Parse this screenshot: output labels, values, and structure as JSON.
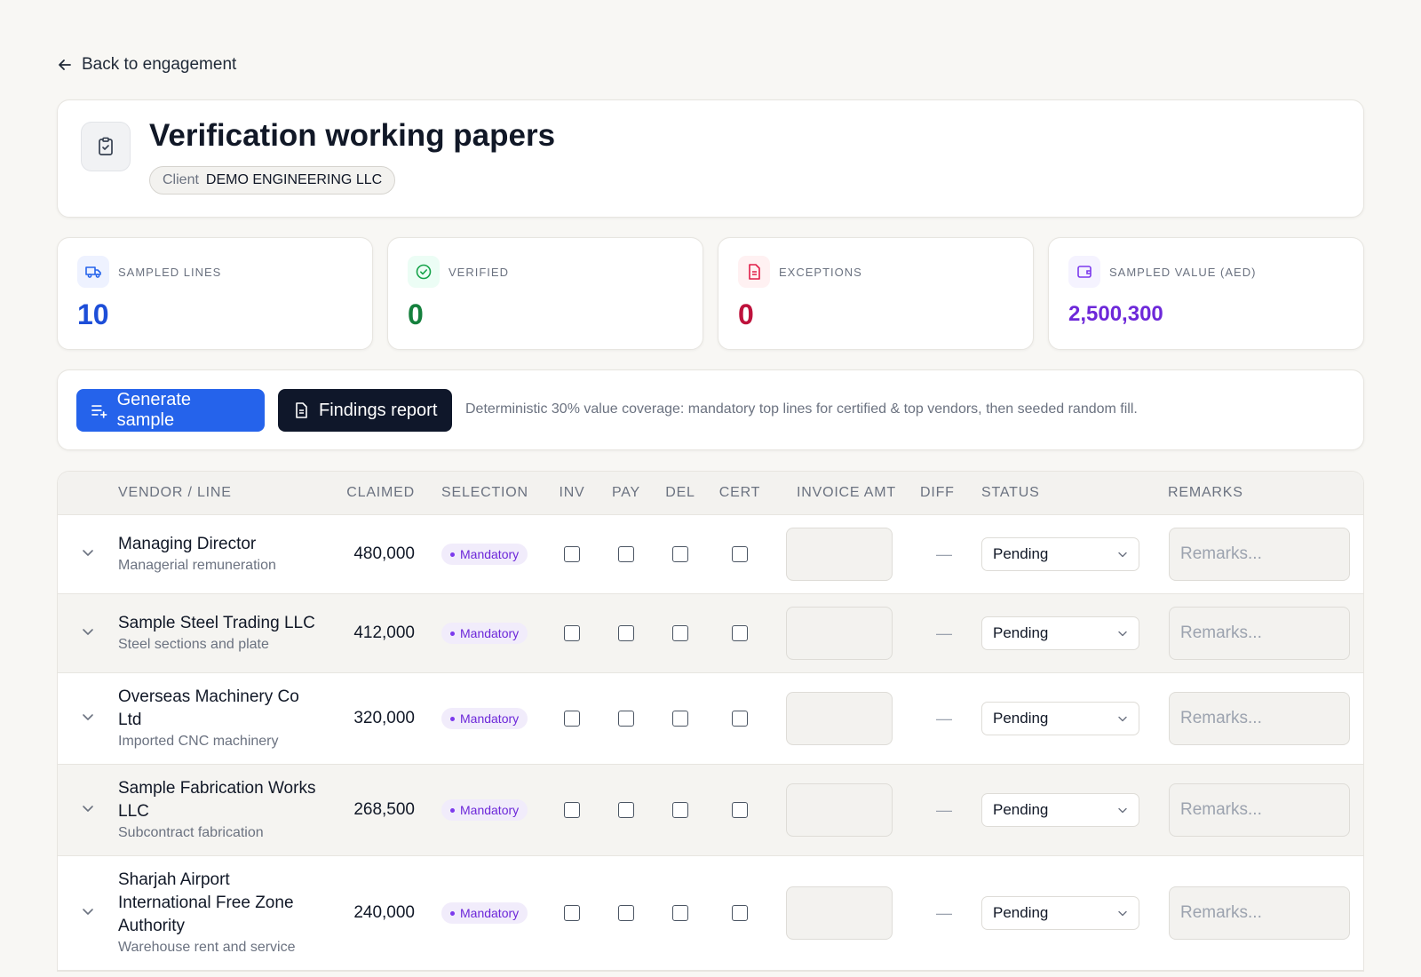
{
  "back_link": "Back to engagement",
  "header": {
    "title": "Verification working papers",
    "client_label": "Client",
    "client_name": "DEMO ENGINEERING LLC"
  },
  "stats": [
    {
      "label": "SAMPLED LINES",
      "value": "10"
    },
    {
      "label": "VERIFIED",
      "value": "0"
    },
    {
      "label": "EXCEPTIONS",
      "value": "0"
    },
    {
      "label": "SAMPLED VALUE (AED)",
      "value": "2,500,300"
    }
  ],
  "toolbar": {
    "generate_button": "Generate sample",
    "findings_button": "Findings report",
    "note": "Deterministic 30% value coverage: mandatory top lines for certified & top vendors, then seeded random fill."
  },
  "table": {
    "columns": [
      "VENDOR / LINE",
      "CLAIMED",
      "SELECTION",
      "INV",
      "PAY",
      "DEL",
      "CERT",
      "INVOICE AMT",
      "DIFF",
      "STATUS",
      "REMARKS"
    ],
    "rows": [
      {
        "vendor": "Managing Director",
        "line": "Managerial remuneration",
        "claimed": "480,000",
        "selection": "Mandatory",
        "diff": "—",
        "status": "Pending",
        "remarks": "Remarks..."
      },
      {
        "vendor": "Sample Steel Trading LLC",
        "line": "Steel sections and plate",
        "claimed": "412,000",
        "selection": "Mandatory",
        "diff": "—",
        "status": "Pending",
        "remarks": "Remarks..."
      },
      {
        "vendor": "Overseas Machinery Co Ltd",
        "line": "Imported CNC machinery",
        "claimed": "320,000",
        "selection": "Mandatory",
        "diff": "—",
        "status": "Pending",
        "remarks": "Remarks..."
      },
      {
        "vendor": "Sample Fabrication Works LLC",
        "line": "Subcontract fabrication",
        "claimed": "268,500",
        "selection": "Mandatory",
        "diff": "—",
        "status": "Pending",
        "remarks": "Remarks..."
      },
      {
        "vendor": "Sharjah Airport International Free Zone Authority",
        "line": "Warehouse rent and service",
        "claimed": "240,000",
        "selection": "Mandatory",
        "diff": "—",
        "status": "Pending",
        "remarks": "Remarks..."
      }
    ]
  }
}
